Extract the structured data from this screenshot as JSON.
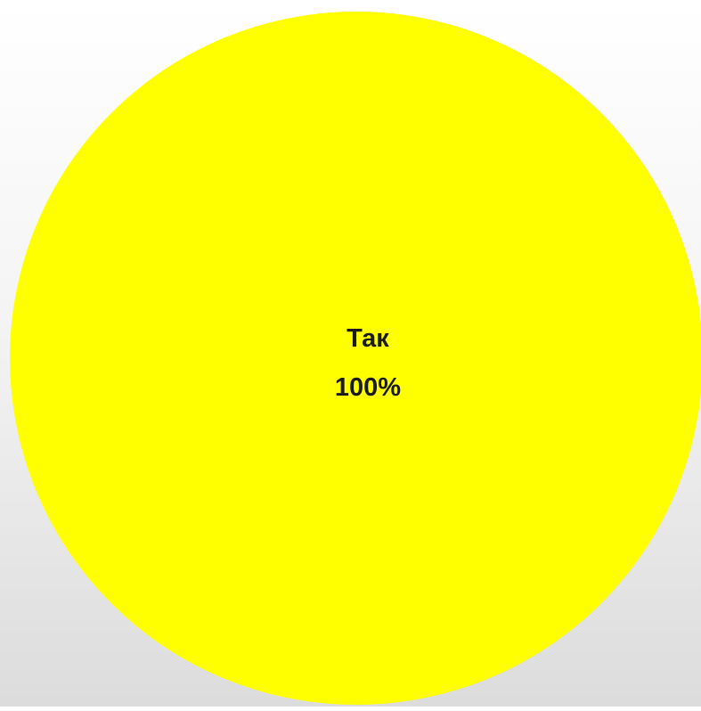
{
  "chart_data": {
    "type": "pie",
    "categories": [
      "Так"
    ],
    "values": [
      100
    ],
    "data_labels": [
      {
        "category": "Так",
        "percent": "100%"
      }
    ],
    "title": "",
    "legend": "none",
    "colors": [
      "#ffff00"
    ]
  }
}
